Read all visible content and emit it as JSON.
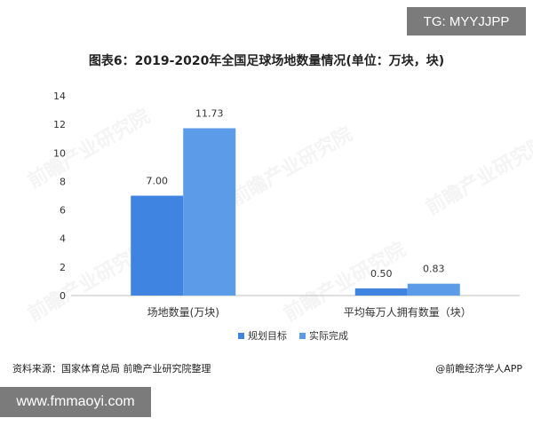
{
  "badge_top": "TG: MYYJJPP",
  "badge_bottom": "www.fmmaoyi.com",
  "source_text": "资料来源：国家体育总局 前瞻产业研究院整理",
  "copyright_text": "@前瞻经济学人APP",
  "watermark_text": "前瞻产业研究院",
  "chart_data": {
    "type": "bar",
    "title": "图表6：2019-2020年全国足球场地数量情况(单位：万块，块)",
    "categories": [
      "场地数量(万块)",
      "平均每万人拥有数量（块）"
    ],
    "series": [
      {
        "name": "规划目标",
        "values": [
          7.0,
          0.5
        ],
        "labels": [
          "7.00",
          "0.50"
        ],
        "color": "#3f84e0"
      },
      {
        "name": "实际完成",
        "values": [
          11.73,
          0.83
        ],
        "labels": [
          "11.73",
          "0.83"
        ],
        "color": "#5b9be8"
      }
    ],
    "ylim": [
      0,
      14
    ],
    "yticks": [
      "0",
      "2",
      "4",
      "6",
      "8",
      "10",
      "12",
      "14"
    ],
    "grid": false,
    "legend": "bottom"
  }
}
